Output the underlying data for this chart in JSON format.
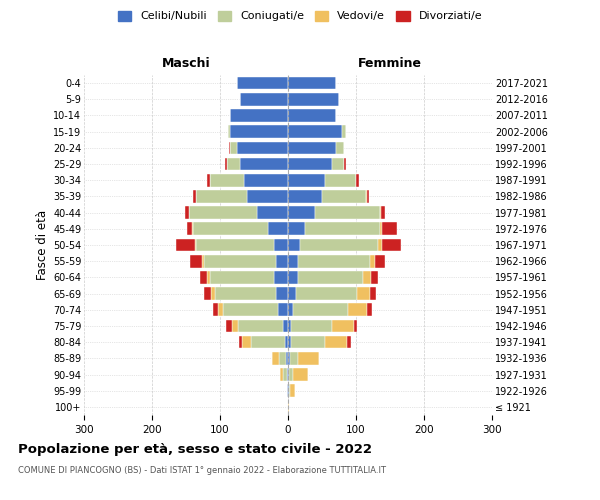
{
  "age_groups": [
    "100+",
    "95-99",
    "90-94",
    "85-89",
    "80-84",
    "75-79",
    "70-74",
    "65-69",
    "60-64",
    "55-59",
    "50-54",
    "45-49",
    "40-44",
    "35-39",
    "30-34",
    "25-29",
    "20-24",
    "15-19",
    "10-14",
    "5-9",
    "0-4"
  ],
  "birth_years": [
    "≤ 1921",
    "1922-1926",
    "1927-1931",
    "1932-1936",
    "1937-1941",
    "1942-1946",
    "1947-1951",
    "1952-1956",
    "1957-1961",
    "1962-1966",
    "1967-1971",
    "1972-1976",
    "1977-1981",
    "1982-1986",
    "1987-1991",
    "1992-1996",
    "1997-2001",
    "2002-2006",
    "2007-2011",
    "2012-2016",
    "2017-2021"
  ],
  "male_celibe": [
    0,
    1,
    2,
    3,
    5,
    8,
    15,
    18,
    20,
    18,
    20,
    30,
    45,
    60,
    65,
    70,
    75,
    85,
    85,
    70,
    75
  ],
  "male_coniugato": [
    0,
    1,
    5,
    10,
    50,
    65,
    80,
    90,
    95,
    105,
    115,
    110,
    100,
    75,
    50,
    20,
    10,
    3,
    0,
    0,
    0
  ],
  "male_vedovo": [
    0,
    0,
    5,
    10,
    12,
    10,
    8,
    5,
    4,
    3,
    2,
    1,
    1,
    0,
    0,
    0,
    0,
    0,
    0,
    0,
    0
  ],
  "male_divorziato": [
    0,
    0,
    0,
    0,
    5,
    8,
    8,
    10,
    10,
    18,
    28,
    8,
    5,
    5,
    4,
    2,
    2,
    0,
    0,
    0,
    0
  ],
  "female_celibe": [
    0,
    1,
    2,
    3,
    5,
    5,
    8,
    12,
    15,
    15,
    18,
    25,
    40,
    50,
    55,
    65,
    70,
    80,
    70,
    75,
    70
  ],
  "female_coniugato": [
    0,
    2,
    5,
    12,
    50,
    60,
    80,
    90,
    95,
    105,
    115,
    110,
    95,
    65,
    45,
    18,
    12,
    5,
    0,
    0,
    0
  ],
  "female_vedovo": [
    2,
    8,
    22,
    30,
    32,
    32,
    28,
    18,
    12,
    8,
    5,
    3,
    2,
    1,
    0,
    0,
    0,
    0,
    0,
    0,
    0
  ],
  "female_divorziato": [
    0,
    0,
    0,
    0,
    5,
    5,
    8,
    10,
    10,
    15,
    28,
    22,
    5,
    3,
    5,
    3,
    0,
    0,
    0,
    0,
    0
  ],
  "colors": {
    "celibe": "#4472C4",
    "coniugato": "#BFCE9B",
    "vedovo": "#F0C060",
    "divorziato": "#CC2222"
  },
  "title": "Popolazione per età, sesso e stato civile - 2022",
  "subtitle": "COMUNE DI PIANCOGNO (BS) - Dati ISTAT 1° gennaio 2022 - Elaborazione TUTTITALIA.IT",
  "xlabel_left": "Maschi",
  "xlabel_right": "Femmine",
  "ylabel_left": "Fasce di età",
  "xlim": 300,
  "legend_labels": [
    "Celibi/Nubili",
    "Coniugati/e",
    "Vedovi/e",
    "Divorziati/e"
  ],
  "background_color": "#ffffff"
}
